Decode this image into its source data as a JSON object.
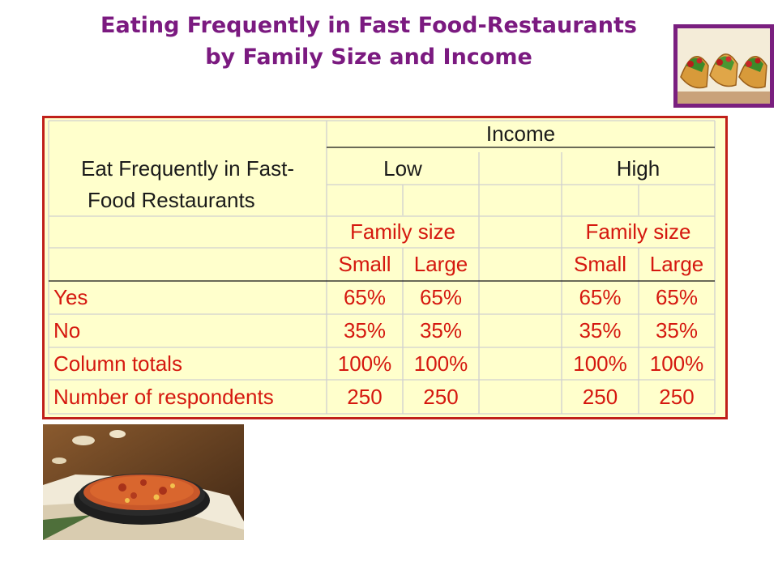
{
  "title": {
    "line1": "Eating Frequently in Fast Food-Restaurants",
    "line2": "by Family Size and Income"
  },
  "images": {
    "top_right": "tacos-photo",
    "bottom_left": "pizza-photo"
  },
  "table": {
    "row_header": [
      "Eat Frequently in Fast-",
      "Food Restaurants"
    ],
    "income_label": "Income",
    "income_groups": [
      "Low",
      "High"
    ],
    "family_size_label": "Family size",
    "family_sizes": [
      "Small",
      "Large"
    ],
    "rows": [
      {
        "label": "Yes",
        "values": [
          "65%",
          "65%",
          "65%",
          "65%"
        ]
      },
      {
        "label": "No",
        "values": [
          "35%",
          "35%",
          "35%",
          "35%"
        ]
      },
      {
        "label": "Column totals",
        "values": [
          "100%",
          "100%",
          "100%",
          "100%"
        ]
      },
      {
        "label": "Number of respondents",
        "values": [
          "250",
          "250",
          "250",
          "250"
        ]
      }
    ]
  },
  "colors": {
    "title": "#7b1a80",
    "table_border": "#c0201a",
    "table_background": "#ffffcc",
    "label_text": "#d5180f"
  }
}
